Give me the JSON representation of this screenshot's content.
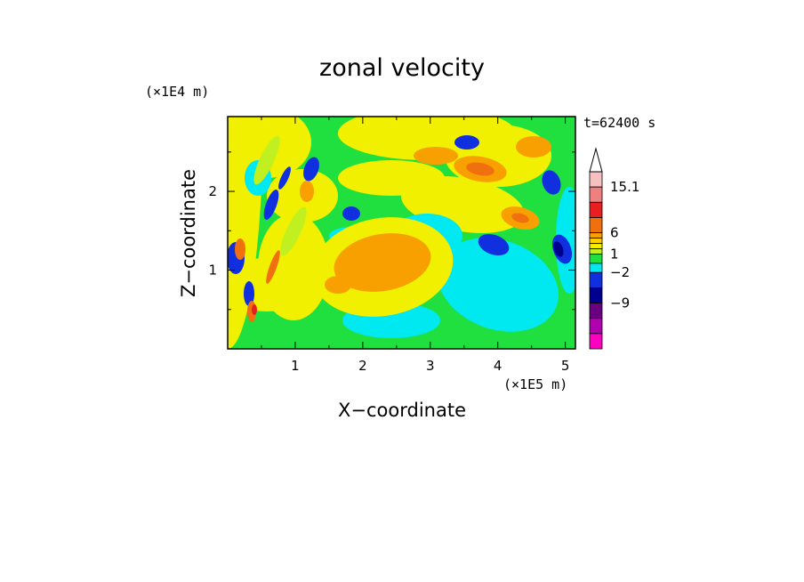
{
  "chart_data": {
    "type": "heatmap",
    "title": "zonal velocity",
    "xlabel": "X−coordinate",
    "ylabel": "Z−coordinate",
    "x_unit_label": "(×1E5 m)",
    "y_unit_label": "(×1E4 m)",
    "time_label": "t=62400 s",
    "xlim": [
      0,
      5.15
    ],
    "ylim": [
      0,
      2.95
    ],
    "x_ticks": [
      1,
      2,
      3,
      4,
      5
    ],
    "y_ticks": [
      1,
      2
    ],
    "x_tick_labels": [
      "1",
      "2",
      "3",
      "4",
      "5"
    ],
    "y_tick_labels": [
      "1",
      "2"
    ],
    "colorbar": {
      "labeled_values": [
        "15.1",
        "6",
        "1",
        "−2",
        "−9"
      ],
      "bands_top_to_bottom": [
        "#f7c0c0",
        "#f08080",
        "#e62020",
        "#f07010",
        "#f7a000",
        "#ffd000",
        "#f0f000",
        "#c0f020",
        "#20e040",
        "#00e8f0",
        "#1030e0",
        "#000090",
        "#6a0080",
        "#b000b0",
        "#ff00c0"
      ],
      "arrow_color": "#ffffff"
    },
    "grid": false,
    "legend_position": "right"
  }
}
